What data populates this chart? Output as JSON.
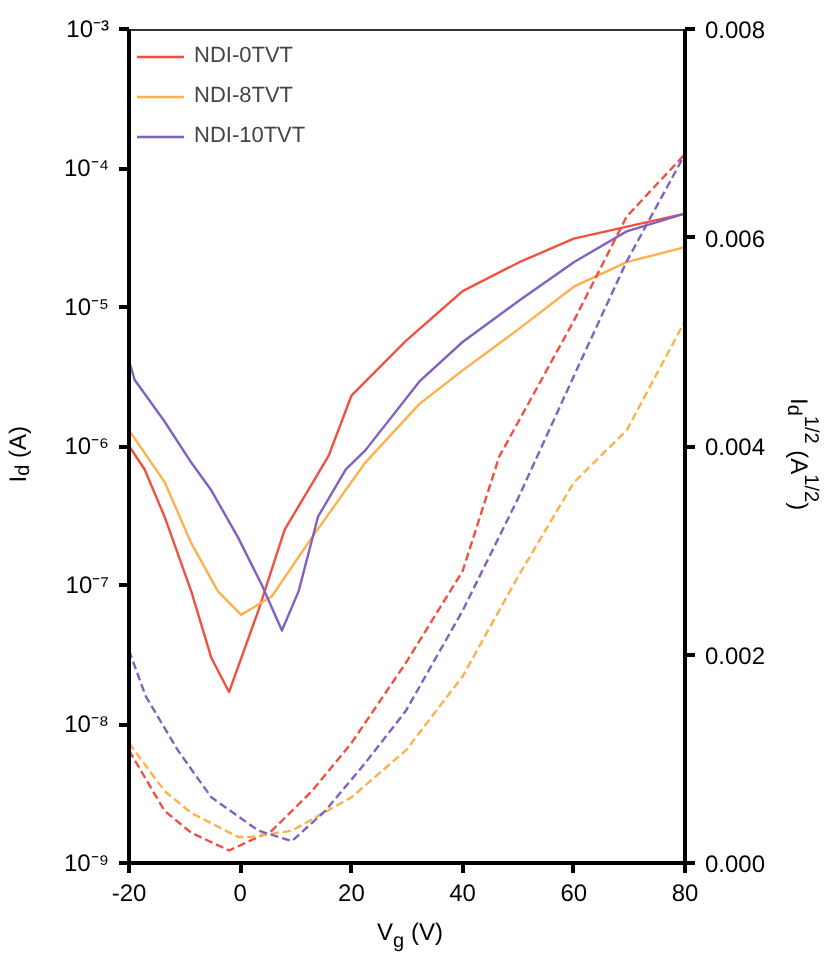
{
  "chart_data": {
    "type": "line",
    "xlabel": "V$_{g}$ (V)",
    "ylabel": "I$_{d}$ (A)",
    "y2label": "I$_{d}$$^{1/2}$ (A$^{1/2}$)",
    "log": "y",
    "legend": "top left",
    "grid": false,
    "line_style": "solid",
    "xlim": [
      -20,
      80
    ],
    "xticks": [
      -20,
      0,
      20,
      40,
      60,
      80
    ],
    "ylim": [
      1e-09,
      0.001
    ],
    "yticks": [
      {
        "value": 1e-09,
        "label": "10⁻⁹"
      },
      {
        "value": 1e-08,
        "label": "10⁻⁸"
      },
      {
        "value": 1e-07,
        "label": "10⁻⁷"
      },
      {
        "value": 1e-06,
        "label": "10⁻⁶"
      },
      {
        "value": 1e-05,
        "label": "10⁻⁵"
      },
      {
        "value": 0.0001,
        "label": "10⁻⁴"
      },
      {
        "value": 0.001,
        "label": "10⁻³"
      }
    ],
    "y2lim": [
      0,
      0.008
    ],
    "y2ticks": [
      {
        "value": 0,
        "label": "0.000"
      },
      {
        "value": 0.002,
        "label": "0.002"
      },
      {
        "value": 0.004,
        "label": "0.004"
      },
      {
        "value": 0.006,
        "label": "0.006"
      },
      {
        "value": 0.008,
        "label": "0.008"
      }
    ],
    "series": [
      {
        "name": "NDI-0TVT",
        "color": "#f05040",
        "x": [
          -20,
          -17.2,
          -13.6,
          -8.8,
          -5.2,
          -2,
          3.3,
          8,
          15.9,
          20,
          29.8,
          40,
          50.2,
          60,
          80
        ],
        "values": [
          1e-06,
          6.8e-07,
          3.1e-07,
          9e-08,
          3e-08,
          1.7e-08,
          6.6e-08,
          2.5e-07,
          8.5e-07,
          2.3e-06,
          5.7e-06,
          1.3e-05,
          2.1e-05,
          3.1e-05,
          4.7e-05
        ]
      },
      {
        "name": "NDI-8TVT",
        "color": "#ffb04c",
        "x": [
          -20,
          -13.6,
          -8.8,
          -4,
          0.2,
          5.7,
          12.9,
          22.5,
          32.2,
          40,
          50,
          60,
          69.5,
          80
        ],
        "values": [
          1.3e-06,
          5.5e-07,
          2e-07,
          9e-08,
          6.1e-08,
          8.3e-08,
          2.2e-07,
          7.6e-07,
          2e-06,
          3.5e-06,
          6.9e-06,
          1.4e-05,
          2.1e-05,
          2.7e-05
        ]
      },
      {
        "name": "NDI-10TVT",
        "color": "#8060c0",
        "x": [
          -20,
          -19,
          -13.6,
          -8.8,
          -5.2,
          -0.4,
          3.9,
          7.5,
          10.5,
          14,
          19,
          22.5,
          32.2,
          40,
          50,
          60,
          69.5,
          80
        ],
        "values": [
          4.1e-06,
          3e-06,
          1.5e-06,
          7.6e-07,
          4.8e-07,
          2.2e-07,
          1e-07,
          4.7e-08,
          9e-08,
          3.1e-07,
          6.8e-07,
          9.3e-07,
          2.9e-06,
          5.6e-06,
          1.1e-05,
          2.1e-05,
          3.5e-05,
          4.7e-05
        ]
      },
      {
        "color": "#f05040",
        "axis": "y2",
        "line_style": "dashed",
        "x": [
          -20,
          -13.6,
          -8.8,
          -2,
          5.7,
          12.9,
          20,
          29.8,
          40,
          46.6,
          60,
          69.5,
          80
        ],
        "values": [
          0.00108,
          0.0005,
          0.00029,
          0.00012,
          0.00031,
          0.00069,
          0.00115,
          0.00192,
          0.0028,
          0.0039,
          0.0052,
          0.0062,
          0.0068
        ]
      },
      {
        "color": "#ffb04c",
        "axis": "y2",
        "line_style": "dashed",
        "x": [
          -20,
          -13.6,
          -8.8,
          -0.4,
          2,
          9.3,
          20,
          29.8,
          40,
          50,
          60,
          69.5,
          80
        ],
        "values": [
          0.00115,
          0.00069,
          0.00048,
          0.00025,
          0.00025,
          0.00031,
          0.00063,
          0.00108,
          0.00179,
          0.00275,
          0.00365,
          0.00415,
          0.0052
        ]
      },
      {
        "color": "#8060c0",
        "axis": "y2",
        "line_style": "dashed",
        "x": [
          -20,
          -17,
          -11.2,
          -5.2,
          3.3,
          9.3,
          15.3,
          22.5,
          29.8,
          40,
          50,
          60,
          69.5,
          80
        ],
        "values": [
          0.00204,
          0.0016,
          0.00108,
          0.00063,
          0.00031,
          0.00021,
          0.0005,
          0.00096,
          0.00146,
          0.00242,
          0.0035,
          0.00467,
          0.00577,
          0.0068
        ]
      }
    ]
  }
}
